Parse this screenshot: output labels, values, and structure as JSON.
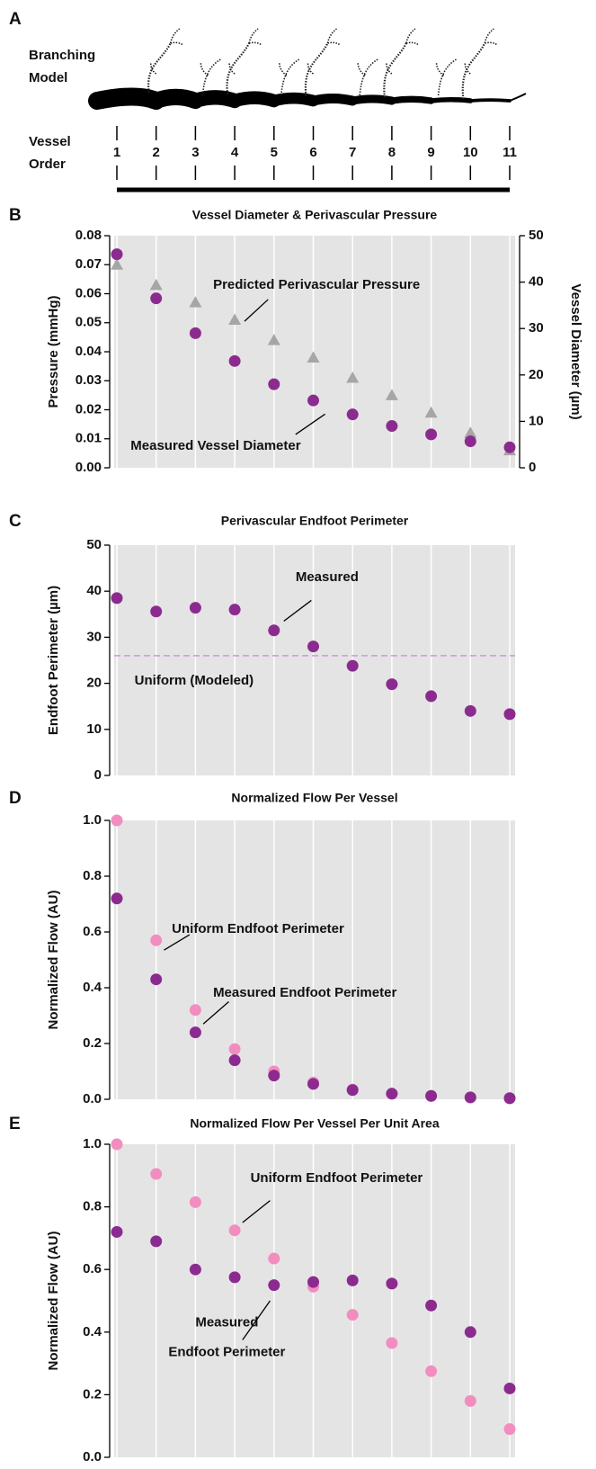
{
  "panel_a": {
    "panel": "A",
    "model_label": [
      "Branching",
      "Model"
    ],
    "order_label": [
      "Vessel",
      "Order"
    ],
    "orders": [
      1,
      2,
      3,
      4,
      5,
      6,
      7,
      8,
      9,
      10,
      11
    ]
  },
  "chart_data": [
    {
      "panel": "B",
      "type": "scatter",
      "title": "Vessel Diameter & Perivascular Pressure",
      "x": [
        1,
        2,
        3,
        4,
        5,
        6,
        7,
        8,
        9,
        10,
        11
      ],
      "xlim": [
        1,
        11
      ],
      "ylabel": "Pressure (mmHg)",
      "ylim": [
        0,
        0.08
      ],
      "yticks": [
        {
          "value": 0,
          "label": "0.00"
        },
        0.01,
        0.02,
        0.03,
        0.04,
        0.05,
        0.06,
        0.07,
        0.08
      ],
      "y2label": "Vessel Diameter (µm)",
      "y2lim": [
        0,
        50
      ],
      "y2ticks": [
        0,
        10,
        20,
        30,
        40,
        50
      ],
      "grid": true,
      "background": "#e4e4e4",
      "series": [
        {
          "name": "Predicted Perivascular Pressure",
          "color": "#a6a6a6",
          "label_color": "#8c8c8c",
          "marker": "triangle",
          "values": [
            0.07,
            0.063,
            0.057,
            0.051,
            0.044,
            0.038,
            0.031,
            0.025,
            0.019,
            0.012,
            0.006
          ]
        },
        {
          "name": "Measured Vessel Diameter",
          "color": "#8c2b8f",
          "label_color": "#8c2b8f",
          "marker": "circle",
          "axis": "y2",
          "values": [
            46,
            36.5,
            29,
            23,
            18,
            14.5,
            11.5,
            9,
            7.2,
            5.7,
            4.4
          ]
        }
      ]
    },
    {
      "panel": "C",
      "type": "scatter",
      "title": "Perivascular Endfoot Perimeter",
      "x": [
        1,
        2,
        3,
        4,
        5,
        6,
        7,
        8,
        9,
        10,
        11
      ],
      "xlim": [
        1,
        11
      ],
      "ylabel": "Endfoot Perimeter (µm)",
      "ylim": [
        0,
        50
      ],
      "yticks": [
        0,
        10,
        20,
        30,
        40,
        50
      ],
      "grid": true,
      "background": "#e4e4e4",
      "reference_lines": [
        {
          "label": "Uniform (Modeled)",
          "value": 26,
          "color": "#c79ad8",
          "label_color": "#ea6aac"
        }
      ],
      "series": [
        {
          "name": "Measured",
          "color": "#8c2b8f",
          "label_color": "#8c2b8f",
          "marker": "circle",
          "values": [
            38.5,
            35.6,
            36.4,
            36,
            31.5,
            28,
            23.8,
            19.8,
            17.2,
            14,
            13.3
          ]
        }
      ]
    },
    {
      "panel": "D",
      "type": "scatter",
      "title": "Normalized Flow Per Vessel",
      "x": [
        1,
        2,
        3,
        4,
        5,
        6,
        7,
        8,
        9,
        10,
        11
      ],
      "xlim": [
        1,
        11
      ],
      "ylabel": "Normalized Flow (AU)",
      "ylim": [
        0,
        1
      ],
      "yticks": [
        {
          "value": 0,
          "label": "0.0"
        },
        0.2,
        0.4,
        0.6,
        0.8,
        {
          "value": 1,
          "label": "1.0"
        }
      ],
      "grid": true,
      "background": "#e4e4e4",
      "series": [
        {
          "name": "Uniform Endfoot Perimeter",
          "color": "#f28dc0",
          "label_color": "#ea6aac",
          "marker": "circle",
          "values": [
            1.0,
            0.57,
            0.32,
            0.18,
            0.1,
            0.06,
            0.035,
            0.02,
            0.012,
            0.006,
            0.003
          ]
        },
        {
          "name": "Measured Endfoot Perimeter",
          "color": "#8c2b8f",
          "label_color": "#8c2b8f",
          "marker": "circle",
          "values": [
            0.72,
            0.43,
            0.24,
            0.14,
            0.085,
            0.055,
            0.033,
            0.02,
            0.012,
            0.007,
            0.004
          ]
        }
      ]
    },
    {
      "panel": "E",
      "type": "scatter",
      "title": "Normalized Flow Per Vessel Per Unit Area",
      "x": [
        1,
        2,
        3,
        4,
        5,
        6,
        7,
        8,
        9,
        10,
        11
      ],
      "xlim": [
        1,
        11
      ],
      "ylabel": "Normalized Flow (AU)",
      "ylim": [
        0,
        1
      ],
      "yticks": [
        {
          "value": 0,
          "label": "0.0"
        },
        0.2,
        0.4,
        0.6,
        0.8,
        {
          "value": 1,
          "label": "1.0"
        }
      ],
      "grid": true,
      "background": "#e4e4e4",
      "series": [
        {
          "name": "Uniform Endfoot Perimeter",
          "color": "#f28dc0",
          "label_color": "#ea6aac",
          "marker": "circle",
          "values": [
            1.0,
            0.905,
            0.815,
            0.725,
            0.635,
            0.545,
            0.455,
            0.365,
            0.275,
            0.18,
            0.09
          ]
        },
        {
          "name": [
            "Measured",
            "Endfoot Perimeter"
          ],
          "color": "#8c2b8f",
          "label_color": "#8c2b8f",
          "marker": "circle",
          "values": [
            0.72,
            0.69,
            0.6,
            0.575,
            0.55,
            0.56,
            0.565,
            0.555,
            0.485,
            0.4,
            0.22
          ]
        }
      ]
    }
  ]
}
